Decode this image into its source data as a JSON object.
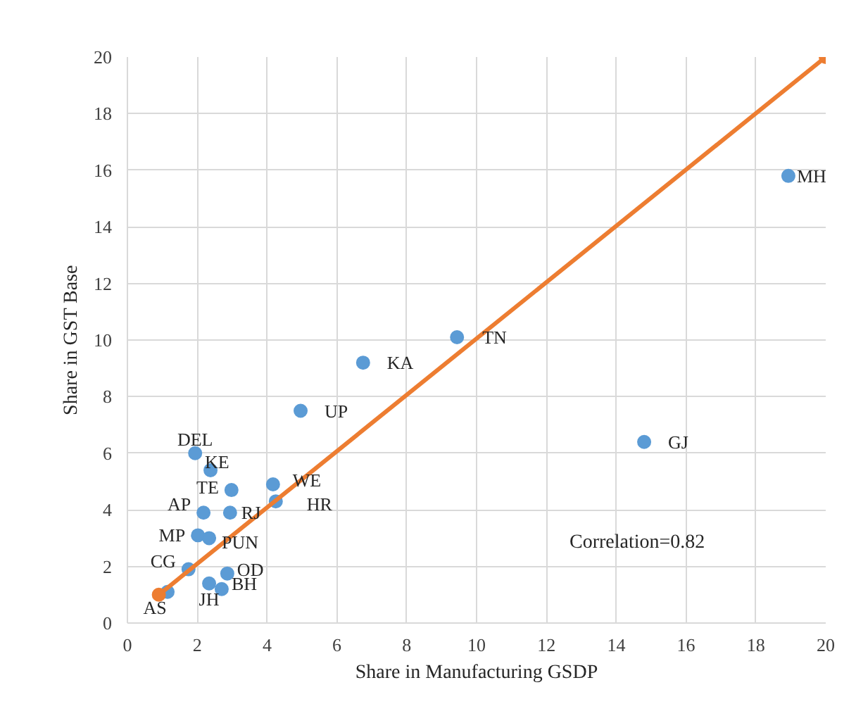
{
  "chart_data": {
    "type": "scatter",
    "xlabel": "Share in Manufacturing GSDP",
    "ylabel": "Share in GST Base",
    "xlim": [
      0,
      20
    ],
    "ylim": [
      0,
      20
    ],
    "xticks": [
      0,
      2,
      4,
      6,
      8,
      10,
      12,
      14,
      16,
      18,
      20
    ],
    "yticks": [
      0,
      2,
      4,
      6,
      8,
      10,
      12,
      14,
      16,
      18,
      20
    ],
    "grid": true,
    "marker": "circle",
    "series": [
      {
        "color": "#5b9bd5",
        "x": [
          1.94,
          2.38,
          2.98,
          4.17,
          4.25,
          2.18,
          2.94,
          2.02,
          2.34,
          1.75,
          2.86,
          2.34,
          2.7,
          1.15,
          4.96,
          6.75,
          9.44,
          18.93,
          14.8
        ],
        "values": [
          6.0,
          5.4,
          4.7,
          4.9,
          4.3,
          3.9,
          3.9,
          3.1,
          3.0,
          1.9,
          1.75,
          1.4,
          1.2,
          1.1,
          7.5,
          9.2,
          10.1,
          15.8,
          6.4
        ]
      },
      {
        "type": "line",
        "color": "#ed7d31",
        "x": [
          0.9,
          20
        ],
        "values": [
          1.0,
          20
        ]
      }
    ],
    "annotations": [
      {
        "text": "DEL",
        "x": 1.94,
        "y": 6.0
      },
      {
        "text": "KE",
        "x": 2.38,
        "y": 5.4
      },
      {
        "text": "TE",
        "x": 2.98,
        "y": 4.7
      },
      {
        "text": "WE",
        "x": 4.17,
        "y": 4.9
      },
      {
        "text": "HR",
        "x": 4.25,
        "y": 4.3
      },
      {
        "text": "AP",
        "x": 2.18,
        "y": 3.9
      },
      {
        "text": "RJ",
        "x": 2.94,
        "y": 3.9
      },
      {
        "text": "MP",
        "x": 2.02,
        "y": 3.1
      },
      {
        "text": "PUN",
        "x": 2.34,
        "y": 3.0
      },
      {
        "text": "CG",
        "x": 1.75,
        "y": 1.9
      },
      {
        "text": "OD",
        "x": 2.86,
        "y": 1.75
      },
      {
        "text": "JH",
        "x": 2.34,
        "y": 1.4
      },
      {
        "text": "BH",
        "x": 2.7,
        "y": 1.2
      },
      {
        "text": "AS",
        "x": 1.15,
        "y": 1.1
      },
      {
        "text": "UP",
        "x": 4.96,
        "y": 7.5
      },
      {
        "text": "KA",
        "x": 6.75,
        "y": 9.2
      },
      {
        "text": "TN",
        "x": 9.44,
        "y": 10.1
      },
      {
        "text": "MH",
        "x": 18.93,
        "y": 15.8
      },
      {
        "text": "GJ",
        "x": 14.8,
        "y": 6.4
      },
      "Correlation=0.82"
    ]
  }
}
